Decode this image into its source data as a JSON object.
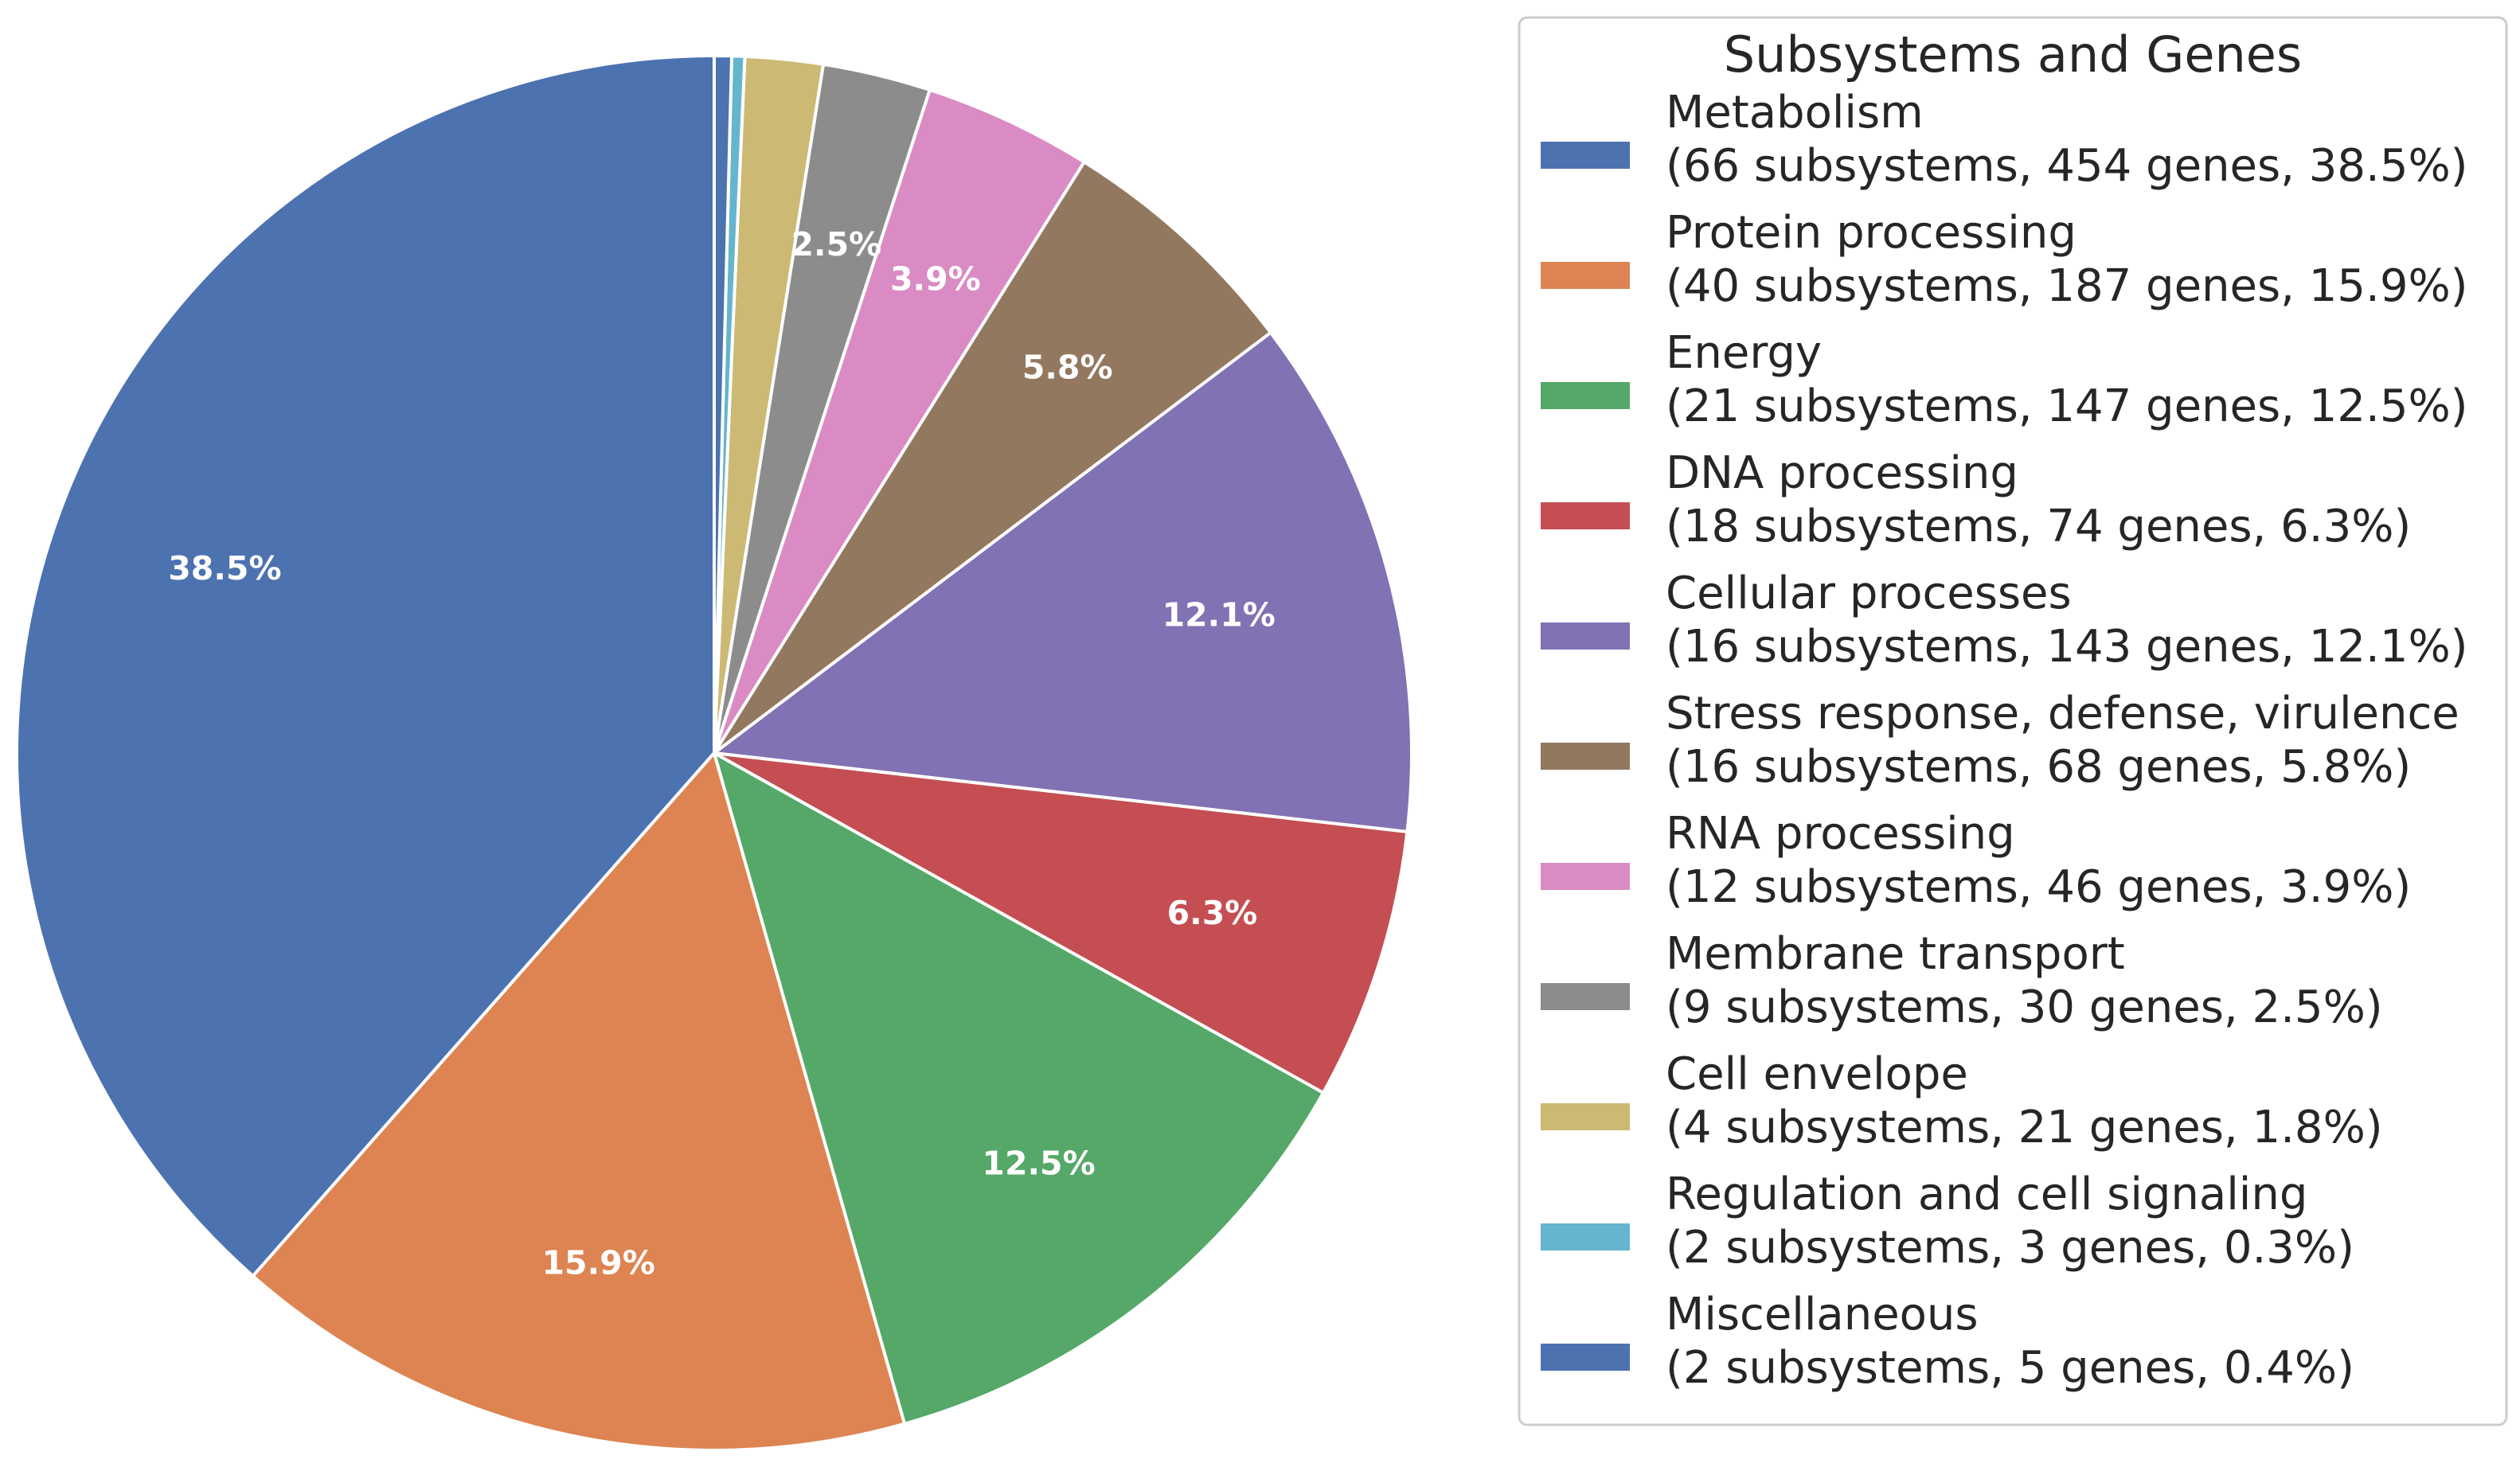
{
  "chart_data": {
    "type": "pie",
    "title": "",
    "legend_title": "Subsystems and Genes",
    "legend_position": "right",
    "start_angle": "top",
    "direction": "counterclockwise",
    "slices": [
      {
        "name": "Metabolism",
        "subsystems": 66,
        "genes": 454,
        "percent": 38.5,
        "label": "38.5%",
        "legend_detail": "(66 subsystems, 454 genes, 38.5%)",
        "color": "#4c72b0"
      },
      {
        "name": "Protein processing",
        "subsystems": 40,
        "genes": 187,
        "percent": 15.9,
        "label": "15.9%",
        "legend_detail": "(40 subsystems, 187 genes, 15.9%)",
        "color": "#dd8452"
      },
      {
        "name": "Energy",
        "subsystems": 21,
        "genes": 147,
        "percent": 12.5,
        "label": "12.5%",
        "legend_detail": "(21 subsystems, 147 genes, 12.5%)",
        "color": "#55a868"
      },
      {
        "name": "DNA processing",
        "subsystems": 18,
        "genes": 74,
        "percent": 6.3,
        "label": "6.3%",
        "legend_detail": "(18 subsystems, 74 genes, 6.3%)",
        "color": "#c44e52"
      },
      {
        "name": "Cellular processes",
        "subsystems": 16,
        "genes": 143,
        "percent": 12.1,
        "label": "12.1%",
        "legend_detail": "(16 subsystems, 143 genes, 12.1%)",
        "color": "#8172b3"
      },
      {
        "name": "Stress response, defense, virulence",
        "subsystems": 16,
        "genes": 68,
        "percent": 5.8,
        "label": "5.8%",
        "legend_detail": "(16 subsystems, 68 genes, 5.8%)",
        "color": "#937860"
      },
      {
        "name": "RNA processing",
        "subsystems": 12,
        "genes": 46,
        "percent": 3.9,
        "label": "3.9%",
        "legend_detail": "(12 subsystems, 46 genes, 3.9%)",
        "color": "#da8bc3"
      },
      {
        "name": "Membrane transport",
        "subsystems": 9,
        "genes": 30,
        "percent": 2.5,
        "label": "2.5%",
        "legend_detail": "(9 subsystems, 30 genes, 2.5%)",
        "color": "#8c8c8c"
      },
      {
        "name": "Cell envelope",
        "subsystems": 4,
        "genes": 21,
        "percent": 1.8,
        "label": "",
        "legend_detail": "(4 subsystems, 21 genes, 1.8%)",
        "color": "#ccb974"
      },
      {
        "name": "Regulation and cell signaling",
        "subsystems": 2,
        "genes": 3,
        "percent": 0.3,
        "label": "",
        "legend_detail": "(2 subsystems, 3 genes, 0.3%)",
        "color": "#64b5cd"
      },
      {
        "name": "Miscellaneous",
        "subsystems": 2,
        "genes": 5,
        "percent": 0.4,
        "label": "",
        "legend_detail": "(2 subsystems, 5 genes, 0.4%)",
        "color": "#4c72b0"
      }
    ]
  }
}
